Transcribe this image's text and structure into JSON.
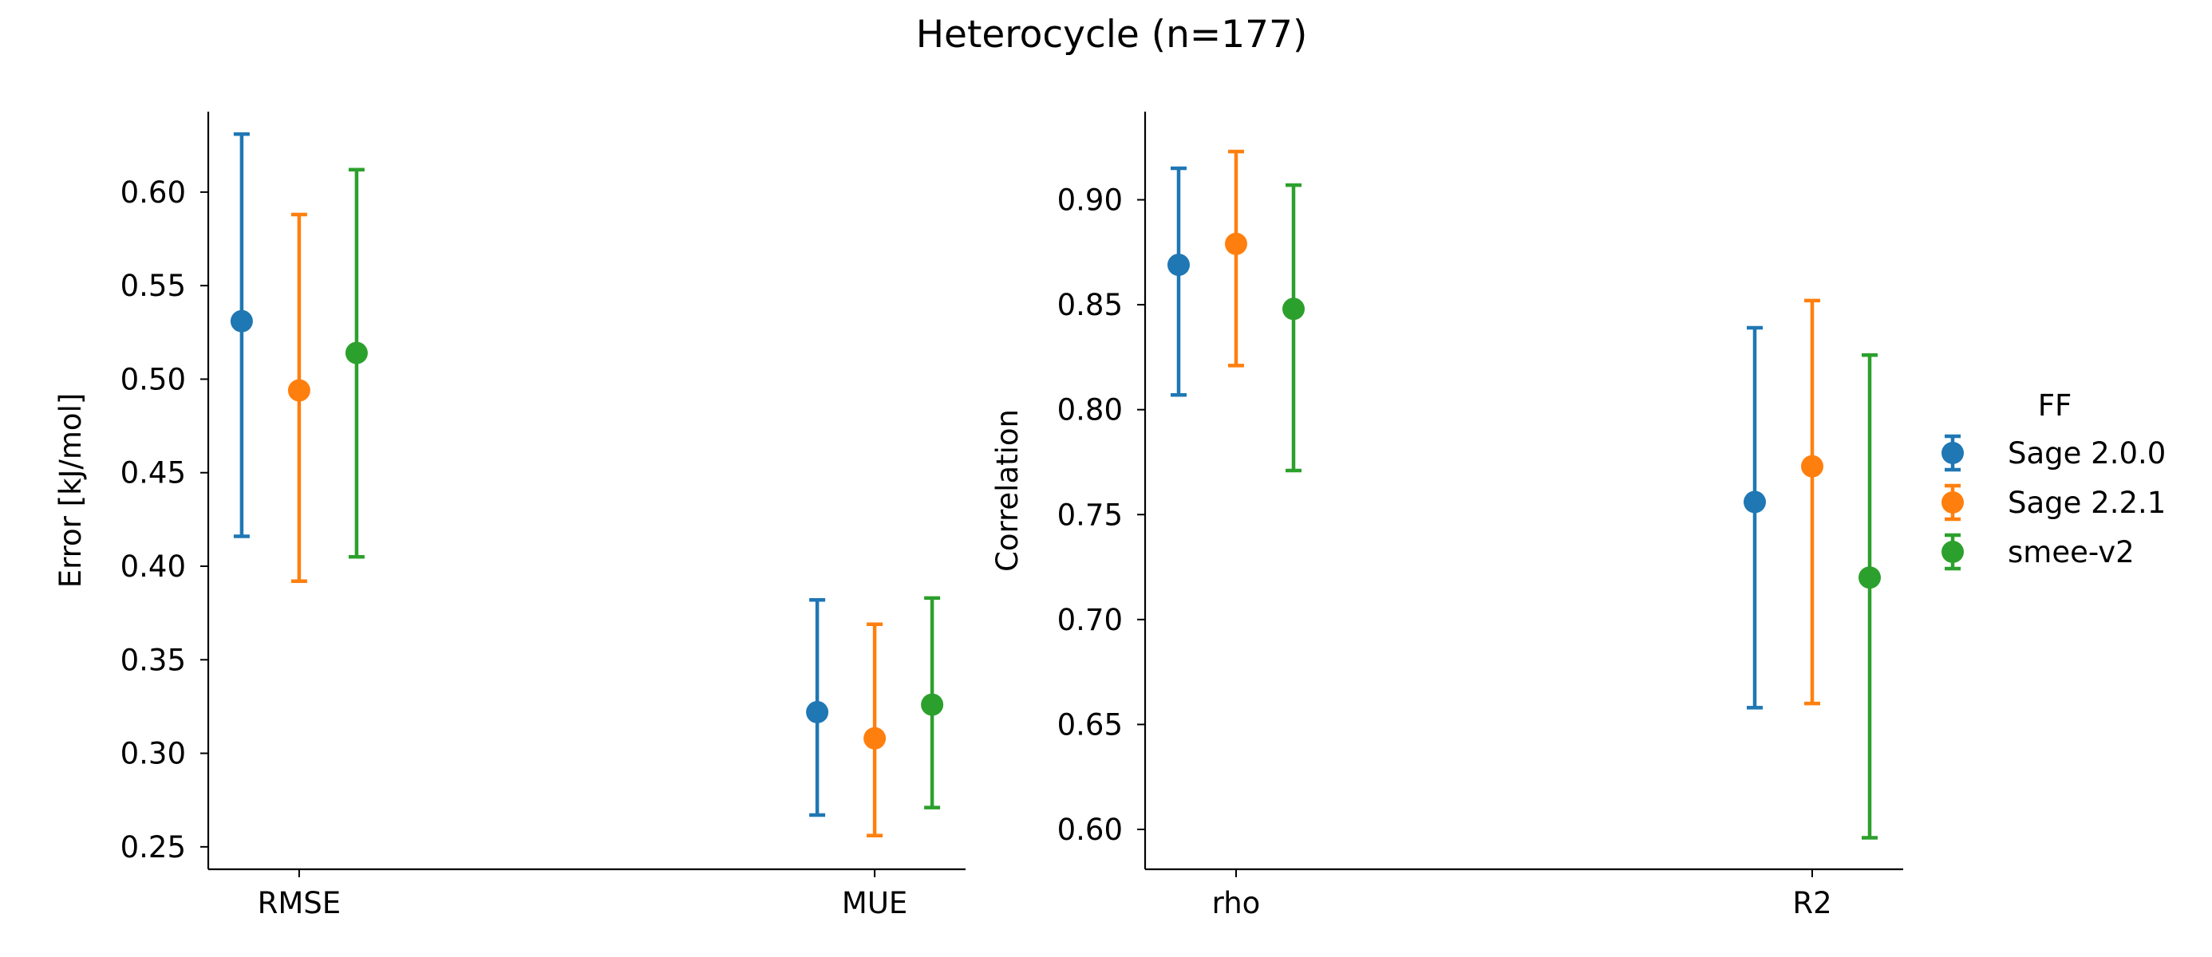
{
  "figure": {
    "title": "Heterocycle (n=177)"
  },
  "legend": {
    "title": "FF",
    "placement": "right",
    "entries": [
      {
        "label": "Sage 2.0.0",
        "color": "#1f77b4"
      },
      {
        "label": "Sage 2.2.1",
        "color": "#ff7f0e"
      },
      {
        "label": "smee-v2",
        "color": "#2ca02c"
      }
    ]
  },
  "chart_data": [
    {
      "type": "scatter",
      "subtype": "point-with-error-bars",
      "xlabel": "",
      "ylabel": "Error [kJ/mol]",
      "categories": [
        "RMSE",
        "MUE"
      ],
      "ylim": [
        0.238,
        0.643
      ],
      "yticks": [
        "0.25",
        "0.30",
        "0.35",
        "0.40",
        "0.45",
        "0.50",
        "0.55",
        "0.60"
      ],
      "grid": false,
      "series": [
        {
          "name": "Sage 2.0.0",
          "color": "#1f77b4",
          "values": [
            0.531,
            0.322
          ],
          "lower": [
            0.416,
            0.267
          ],
          "upper": [
            0.631,
            0.382
          ]
        },
        {
          "name": "Sage 2.2.1",
          "color": "#ff7f0e",
          "values": [
            0.494,
            0.308
          ],
          "lower": [
            0.392,
            0.256
          ],
          "upper": [
            0.588,
            0.369
          ]
        },
        {
          "name": "smee-v2",
          "color": "#2ca02c",
          "values": [
            0.514,
            0.326
          ],
          "lower": [
            0.405,
            0.271
          ],
          "upper": [
            0.612,
            0.383
          ]
        }
      ]
    },
    {
      "type": "scatter",
      "subtype": "point-with-error-bars",
      "xlabel": "",
      "ylabel": "Correlation",
      "categories": [
        "rho",
        "R2"
      ],
      "ylim": [
        0.581,
        0.942
      ],
      "yticks": [
        "0.60",
        "0.65",
        "0.70",
        "0.75",
        "0.80",
        "0.85",
        "0.90"
      ],
      "grid": false,
      "series": [
        {
          "name": "Sage 2.0.0",
          "color": "#1f77b4",
          "values": [
            0.869,
            0.756
          ],
          "lower": [
            0.807,
            0.658
          ],
          "upper": [
            0.915,
            0.839
          ]
        },
        {
          "name": "Sage 2.2.1",
          "color": "#ff7f0e",
          "values": [
            0.879,
            0.773
          ],
          "lower": [
            0.821,
            0.66
          ],
          "upper": [
            0.923,
            0.852
          ]
        },
        {
          "name": "smee-v2",
          "color": "#2ca02c",
          "values": [
            0.848,
            0.72
          ],
          "lower": [
            0.771,
            0.596
          ],
          "upper": [
            0.907,
            0.826
          ]
        }
      ]
    }
  ]
}
